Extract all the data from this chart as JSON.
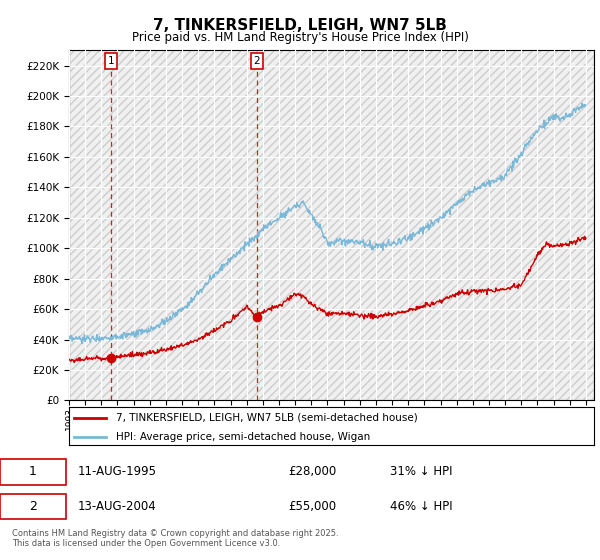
{
  "title": "7, TINKERSFIELD, LEIGH, WN7 5LB",
  "subtitle": "Price paid vs. HM Land Registry's House Price Index (HPI)",
  "hpi_color": "#7ab8d9",
  "price_color": "#cc0000",
  "vline_color": "#cc0000",
  "background_color": "#f0f0f0",
  "grid_color": "#ffffff",
  "ylim": [
    0,
    230000
  ],
  "yticks": [
    0,
    20000,
    40000,
    60000,
    80000,
    100000,
    120000,
    140000,
    160000,
    180000,
    200000,
    220000
  ],
  "sale1_year": 1995.62,
  "sale1_price": 28000,
  "sale1_label": "1",
  "sale1_date": "11-AUG-1995",
  "sale1_hpi_pct": "31% ↓ HPI",
  "sale2_year": 2004.62,
  "sale2_price": 55000,
  "sale2_label": "2",
  "sale2_date": "13-AUG-2004",
  "sale2_hpi_pct": "46% ↓ HPI",
  "legend_label_price": "7, TINKERSFIELD, LEIGH, WN7 5LB (semi-detached house)",
  "legend_label_hpi": "HPI: Average price, semi-detached house, Wigan",
  "footer": "Contains HM Land Registry data © Crown copyright and database right 2025.\nThis data is licensed under the Open Government Licence v3.0.",
  "xmin": 1993,
  "xmax": 2025.5,
  "hpi_years": [
    1993,
    1994,
    1995,
    1996,
    1997,
    1998,
    1999,
    2000,
    2001,
    2002,
    2003,
    2004,
    2004.62,
    2005,
    2006,
    2007,
    2007.5,
    2008,
    2008.5,
    2009,
    2010,
    2011,
    2012,
    2013,
    2014,
    2015,
    2016,
    2017,
    2018,
    2019,
    2020,
    2021,
    2021.5,
    2022,
    2022.5,
    2023,
    2023.5,
    2024,
    2024.5,
    2025
  ],
  "hpi_prices": [
    40000,
    40500,
    41000,
    42000,
    43000,
    46000,
    52000,
    60000,
    70000,
    83000,
    93000,
    103000,
    107000,
    113000,
    120000,
    128000,
    130000,
    122000,
    115000,
    103000,
    105000,
    104000,
    101000,
    103000,
    107000,
    113000,
    120000,
    130000,
    138000,
    143000,
    148000,
    162000,
    170000,
    178000,
    182000,
    187000,
    185000,
    188000,
    192000,
    195000
  ],
  "price_years": [
    1993,
    1994,
    1995,
    1995.62,
    1996,
    1997,
    1998,
    1999,
    2000,
    2001,
    2002,
    2003,
    2004,
    2004.62,
    2005,
    2006,
    2007,
    2007.5,
    2008,
    2009,
    2010,
    2011,
    2012,
    2013,
    2014,
    2015,
    2016,
    2017,
    2018,
    2019,
    2020,
    2021,
    2022,
    2022.5,
    2023,
    2024,
    2025
  ],
  "price_prices": [
    26000,
    27000,
    28000,
    28000,
    29000,
    30000,
    31000,
    33000,
    36000,
    40000,
    46000,
    52000,
    62000,
    55000,
    58000,
    62000,
    70000,
    68000,
    63000,
    57000,
    57000,
    56000,
    55000,
    57000,
    59000,
    62000,
    65000,
    70000,
    72000,
    72000,
    73000,
    76000,
    95000,
    103000,
    101000,
    103000,
    107000
  ]
}
